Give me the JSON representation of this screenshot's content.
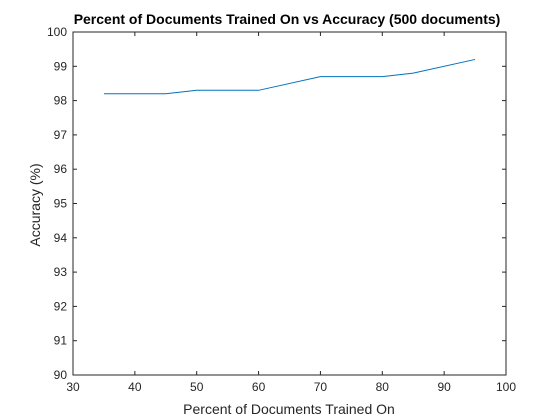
{
  "chart_data": {
    "type": "line",
    "title": "Percent of Documents Trained On vs Accuracy (500 documents)",
    "xlabel": "Percent of Documents Trained On",
    "ylabel": "Accuracy (%)",
    "xlim": [
      30,
      100
    ],
    "ylim": [
      90,
      100
    ],
    "xticks": [
      30,
      40,
      50,
      60,
      70,
      80,
      90,
      100
    ],
    "yticks": [
      90,
      91,
      92,
      93,
      94,
      95,
      96,
      97,
      98,
      99,
      100
    ],
    "grid": false,
    "series": [
      {
        "x": [
          35,
          45,
          50,
          60,
          70,
          80,
          85,
          95
        ],
        "y": [
          98.2,
          98.2,
          98.3,
          98.3,
          98.7,
          98.7,
          98.8,
          99.2
        ],
        "color": "#0072BD"
      }
    ]
  }
}
